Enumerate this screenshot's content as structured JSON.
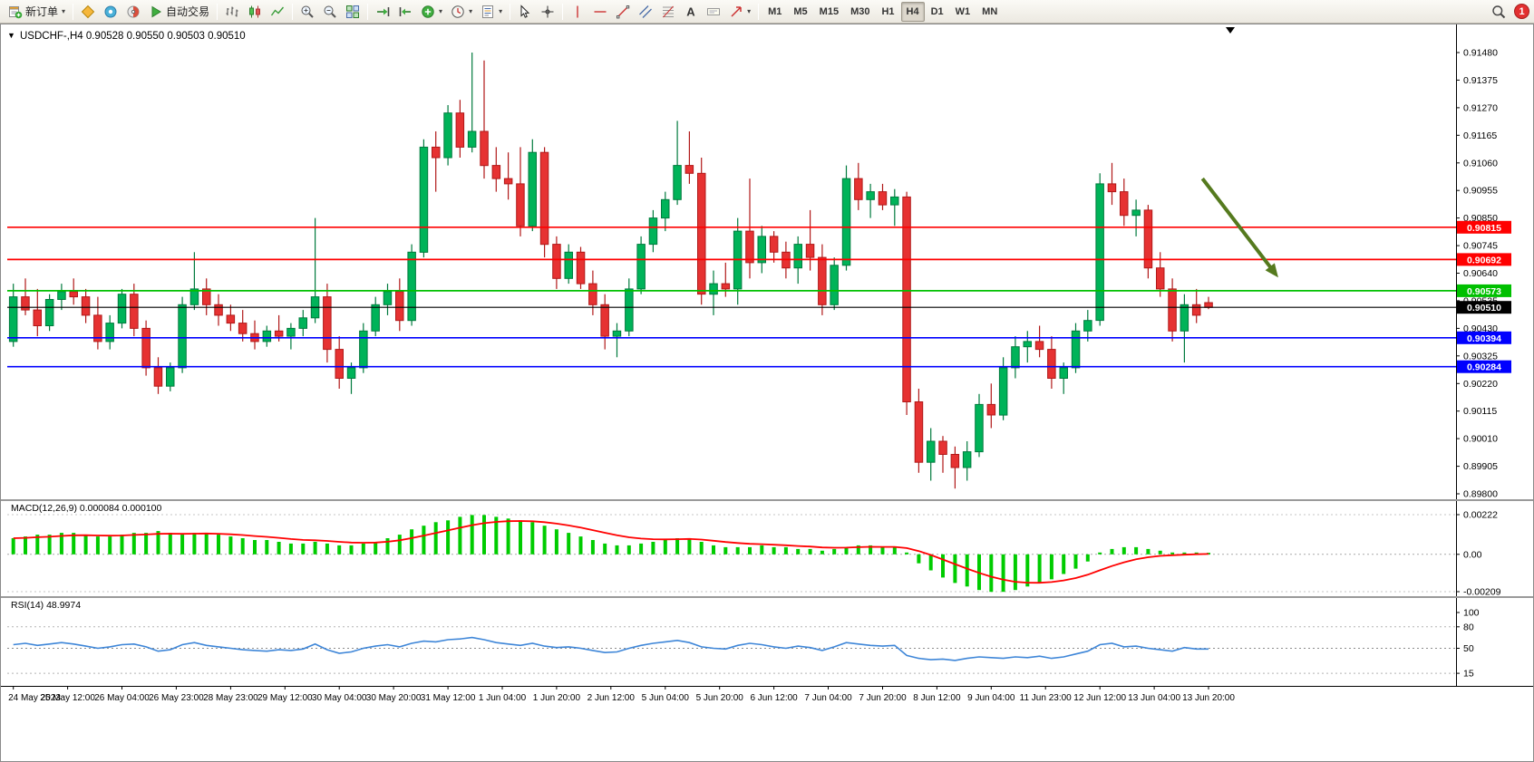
{
  "toolbar": {
    "new_order_label": "新订单",
    "autotrading_label": "自动交易",
    "timeframes": [
      "M1",
      "M5",
      "M15",
      "M30",
      "H1",
      "H4",
      "D1",
      "W1",
      "MN"
    ],
    "active_timeframe": "H4",
    "alert_count": "1",
    "items": [
      {
        "name": "new-order-button",
        "icon": "new-order",
        "label_key": "new_order_label",
        "caret": true
      },
      {
        "sep": true
      },
      {
        "name": "market-watch-button",
        "icon": "market-watch"
      },
      {
        "name": "data-window-button",
        "icon": "data-window"
      },
      {
        "name": "navigator-button",
        "icon": "navigator"
      },
      {
        "name": "autotrading-button",
        "icon": "autotrading",
        "label_key": "autotrading_label"
      },
      {
        "sep": true
      },
      {
        "name": "bar-chart-button",
        "icon": "bar-chart"
      },
      {
        "name": "candlestick-button",
        "icon": "candlestick"
      },
      {
        "name": "line-chart-button",
        "icon": "line-chart"
      },
      {
        "sep": true
      },
      {
        "name": "zoom-in-button",
        "icon": "zoom-in"
      },
      {
        "name": "zoom-out-button",
        "icon": "zoom-out"
      },
      {
        "name": "tile-windows-button",
        "icon": "tile-windows"
      },
      {
        "sep": true
      },
      {
        "name": "auto-scroll-button",
        "icon": "auto-scroll"
      },
      {
        "name": "chart-shift-button",
        "icon": "chart-shift"
      },
      {
        "name": "indicators-button",
        "icon": "indicators",
        "caret": true
      },
      {
        "name": "periods-button",
        "icon": "periods",
        "caret": true
      },
      {
        "name": "templates-button",
        "icon": "templates",
        "caret": true
      },
      {
        "sep": true
      },
      {
        "name": "cursor-button",
        "icon": "cursor"
      },
      {
        "name": "crosshair-button",
        "icon": "crosshair"
      },
      {
        "sep": true
      },
      {
        "name": "vertical-line-button",
        "icon": "vertical-line"
      },
      {
        "name": "horizontal-line-button",
        "icon": "horizontal-line"
      },
      {
        "name": "trendline-button",
        "icon": "trendline"
      },
      {
        "name": "channel-button",
        "icon": "channel"
      },
      {
        "name": "fibonacci-button",
        "icon": "fibonacci"
      },
      {
        "name": "text-button",
        "icon": "text"
      },
      {
        "name": "label-button",
        "icon": "label"
      },
      {
        "name": "arrows-button",
        "icon": "arrows",
        "caret": true
      },
      {
        "sep": true
      },
      {
        "timeframes": true
      },
      {
        "spacer": true
      },
      {
        "name": "search-button",
        "icon": "search"
      },
      {
        "badge": true,
        "name": "alert-badge"
      }
    ]
  },
  "chart_data": {
    "type": "candlestick",
    "title": "USDCHF-,H4",
    "title_marker": "▼",
    "ohlc_text": "0.90528 0.90550 0.90503 0.90510",
    "price_axis": {
      "min": 0.898,
      "max": 0.9148,
      "tick_labels": [
        "0.91480",
        "0.91375",
        "0.91270",
        "0.91165",
        "0.91060",
        "0.90955",
        "0.90850",
        "0.90745",
        "0.90640",
        "0.90535",
        "0.90430",
        "0.90325",
        "0.90220",
        "0.90115",
        "0.90010",
        "0.89905",
        "0.89800"
      ]
    },
    "candles": [
      [
        0.9038,
        0.906,
        0.9036,
        0.9055
      ],
      [
        0.9055,
        0.9062,
        0.9048,
        0.905
      ],
      [
        0.905,
        0.9058,
        0.904,
        0.9044
      ],
      [
        0.9044,
        0.9056,
        0.9042,
        0.9054
      ],
      [
        0.9054,
        0.906,
        0.905,
        0.9057
      ],
      [
        0.9057,
        0.9062,
        0.9052,
        0.9055
      ],
      [
        0.9055,
        0.9058,
        0.9045,
        0.9048
      ],
      [
        0.9048,
        0.9055,
        0.9035,
        0.9038
      ],
      [
        0.9038,
        0.9048,
        0.9035,
        0.9045
      ],
      [
        0.9045,
        0.9058,
        0.9043,
        0.9056
      ],
      [
        0.9056,
        0.906,
        0.904,
        0.9043
      ],
      [
        0.9043,
        0.9046,
        0.9025,
        0.9028
      ],
      [
        0.9028,
        0.9032,
        0.9018,
        0.9021
      ],
      [
        0.9021,
        0.903,
        0.9019,
        0.9028
      ],
      [
        0.9028,
        0.9055,
        0.9026,
        0.9052
      ],
      [
        0.9052,
        0.9072,
        0.905,
        0.9058
      ],
      [
        0.9058,
        0.9062,
        0.9048,
        0.9052
      ],
      [
        0.9052,
        0.9056,
        0.9044,
        0.9048
      ],
      [
        0.9048,
        0.9052,
        0.9042,
        0.9045
      ],
      [
        0.9045,
        0.905,
        0.9038,
        0.9041
      ],
      [
        0.9041,
        0.9046,
        0.9035,
        0.9038
      ],
      [
        0.9038,
        0.9044,
        0.9036,
        0.9042
      ],
      [
        0.9042,
        0.9048,
        0.9038,
        0.904
      ],
      [
        0.904,
        0.9045,
        0.9035,
        0.9043
      ],
      [
        0.9043,
        0.905,
        0.904,
        0.9047
      ],
      [
        0.9047,
        0.9085,
        0.9045,
        0.9055
      ],
      [
        0.9055,
        0.906,
        0.903,
        0.9035
      ],
      [
        0.9035,
        0.904,
        0.902,
        0.9024
      ],
      [
        0.9024,
        0.903,
        0.9018,
        0.9028
      ],
      [
        0.9028,
        0.9045,
        0.9026,
        0.9042
      ],
      [
        0.9042,
        0.9055,
        0.904,
        0.9052
      ],
      [
        0.9052,
        0.906,
        0.9048,
        0.9057
      ],
      [
        0.9057,
        0.9062,
        0.9042,
        0.9046
      ],
      [
        0.9046,
        0.9075,
        0.9044,
        0.9072
      ],
      [
        0.9072,
        0.9115,
        0.907,
        0.9112
      ],
      [
        0.9112,
        0.9118,
        0.9095,
        0.9108
      ],
      [
        0.9108,
        0.9128,
        0.9105,
        0.9125
      ],
      [
        0.9125,
        0.913,
        0.9108,
        0.9112
      ],
      [
        0.9112,
        0.9148,
        0.911,
        0.9118
      ],
      [
        0.9118,
        0.9145,
        0.91,
        0.9105
      ],
      [
        0.9105,
        0.9112,
        0.9095,
        0.91
      ],
      [
        0.91,
        0.911,
        0.9092,
        0.9098
      ],
      [
        0.9098,
        0.9112,
        0.9078,
        0.9082
      ],
      [
        0.9082,
        0.9115,
        0.908,
        0.911
      ],
      [
        0.911,
        0.9112,
        0.907,
        0.9075
      ],
      [
        0.9075,
        0.9078,
        0.9058,
        0.9062
      ],
      [
        0.9062,
        0.9075,
        0.906,
        0.9072
      ],
      [
        0.9072,
        0.9074,
        0.9058,
        0.906
      ],
      [
        0.906,
        0.9065,
        0.9048,
        0.9052
      ],
      [
        0.9052,
        0.9056,
        0.9035,
        0.904
      ],
      [
        0.904,
        0.9045,
        0.9032,
        0.9042
      ],
      [
        0.9042,
        0.9062,
        0.904,
        0.9058
      ],
      [
        0.9058,
        0.9078,
        0.9056,
        0.9075
      ],
      [
        0.9075,
        0.9088,
        0.9072,
        0.9085
      ],
      [
        0.9085,
        0.9095,
        0.908,
        0.9092
      ],
      [
        0.9092,
        0.9122,
        0.909,
        0.9105
      ],
      [
        0.9105,
        0.9118,
        0.9098,
        0.9102
      ],
      [
        0.9102,
        0.9108,
        0.9052,
        0.9056
      ],
      [
        0.9056,
        0.9065,
        0.9048,
        0.906
      ],
      [
        0.906,
        0.9068,
        0.9055,
        0.9058
      ],
      [
        0.9058,
        0.9085,
        0.9052,
        0.908
      ],
      [
        0.908,
        0.91,
        0.9062,
        0.9068
      ],
      [
        0.9068,
        0.9082,
        0.9064,
        0.9078
      ],
      [
        0.9078,
        0.908,
        0.9068,
        0.9072
      ],
      [
        0.9072,
        0.9076,
        0.9062,
        0.9066
      ],
      [
        0.9066,
        0.9078,
        0.906,
        0.9075
      ],
      [
        0.9075,
        0.9088,
        0.9065,
        0.907
      ],
      [
        0.907,
        0.9075,
        0.9048,
        0.9052
      ],
      [
        0.9052,
        0.907,
        0.905,
        0.9067
      ],
      [
        0.9067,
        0.9105,
        0.9065,
        0.91
      ],
      [
        0.91,
        0.9106,
        0.9088,
        0.9092
      ],
      [
        0.9092,
        0.9098,
        0.9085,
        0.9095
      ],
      [
        0.9095,
        0.9098,
        0.9088,
        0.909
      ],
      [
        0.909,
        0.9096,
        0.9082,
        0.9093
      ],
      [
        0.9093,
        0.9095,
        0.901,
        0.9015
      ],
      [
        0.9015,
        0.902,
        0.8988,
        0.8992
      ],
      [
        0.8992,
        0.9005,
        0.8985,
        0.9
      ],
      [
        0.9,
        0.9002,
        0.8988,
        0.8995
      ],
      [
        0.8995,
        0.8998,
        0.8982,
        0.899
      ],
      [
        0.899,
        0.9,
        0.8985,
        0.8996
      ],
      [
        0.8996,
        0.9018,
        0.8994,
        0.9014
      ],
      [
        0.9014,
        0.9022,
        0.9005,
        0.901
      ],
      [
        0.901,
        0.9032,
        0.9008,
        0.9028
      ],
      [
        0.9028,
        0.904,
        0.9024,
        0.9036
      ],
      [
        0.9036,
        0.9042,
        0.903,
        0.9038
      ],
      [
        0.9038,
        0.9044,
        0.9032,
        0.9035
      ],
      [
        0.9035,
        0.904,
        0.902,
        0.9024
      ],
      [
        0.9024,
        0.903,
        0.9018,
        0.9028
      ],
      [
        0.9028,
        0.9045,
        0.9026,
        0.9042
      ],
      [
        0.9042,
        0.905,
        0.9038,
        0.9046
      ],
      [
        0.9046,
        0.9102,
        0.9044,
        0.9098
      ],
      [
        0.9098,
        0.9106,
        0.909,
        0.9095
      ],
      [
        0.9095,
        0.91,
        0.9082,
        0.9086
      ],
      [
        0.9086,
        0.9092,
        0.9078,
        0.9088
      ],
      [
        0.9088,
        0.909,
        0.9062,
        0.9066
      ],
      [
        0.9066,
        0.9072,
        0.9055,
        0.9058
      ],
      [
        0.9058,
        0.9062,
        0.9038,
        0.9042
      ],
      [
        0.9042,
        0.9056,
        0.903,
        0.9052
      ],
      [
        0.9052,
        0.9058,
        0.9045,
        0.9048
      ],
      [
        0.90528,
        0.9055,
        0.90503,
        0.9051
      ]
    ],
    "hlines": [
      {
        "price": 0.90815,
        "label": "0.90815",
        "color": "#ff0000"
      },
      {
        "price": 0.90692,
        "label": "0.90692",
        "color": "#ff0000"
      },
      {
        "price": 0.90573,
        "label": "0.90573",
        "color": "#00c000"
      },
      {
        "price": 0.90394,
        "label": "0.90394",
        "color": "#0000ff"
      },
      {
        "price": 0.90284,
        "label": "0.90284",
        "color": "#0000ff"
      }
    ],
    "current_price": {
      "price": 0.9051,
      "label": "0.90510",
      "color": "#000000"
    },
    "trend_arrow": {
      "from_bar": 98.5,
      "from_price": 0.91,
      "to_bar": 104.5,
      "to_price": 0.9064,
      "color": "#557a1e"
    },
    "shift_marker_bar": 100.8,
    "time_axis": {
      "labels": [
        "24 May 2023",
        "25 May 12:00",
        "26 May 04:00",
        "26 May 23:00",
        "28 May 23:00",
        "29 May 12:00",
        "30 May 04:00",
        "30 May 20:00",
        "31 May 12:00",
        "1 Jun 04:00",
        "1 Jun 20:00",
        "2 Jun 12:00",
        "5 Jun 04:00",
        "5 Jun 20:00",
        "6 Jun 12:00",
        "7 Jun 04:00",
        "7 Jun 20:00",
        "8 Jun 12:00",
        "9 Jun 04:00",
        "11 Jun 23:00",
        "12 Jun 12:00",
        "13 Jun 04:00",
        "13 Jun 20:00"
      ]
    },
    "macd": {
      "name": "MACD(12,26,9)",
      "value": "0.000084",
      "signal_value": "0.000100",
      "axis_labels": [
        "0.00222",
        "0.00",
        "-0.00209"
      ],
      "range": [
        -0.00209,
        0.00222
      ],
      "values": [
        0.0009,
        0.001,
        0.0011,
        0.0011,
        0.0012,
        0.0012,
        0.0011,
        0.001,
        0.001,
        0.0011,
        0.0012,
        0.0012,
        0.0013,
        0.0012,
        0.0011,
        0.0012,
        0.0012,
        0.0011,
        0.001,
        0.0009,
        0.0008,
        0.0008,
        0.0007,
        0.0006,
        0.0006,
        0.0007,
        0.0006,
        0.0005,
        0.0005,
        0.0006,
        0.0007,
        0.0009,
        0.0011,
        0.0014,
        0.0016,
        0.0018,
        0.0019,
        0.0021,
        0.0022,
        0.0022,
        0.0021,
        0.002,
        0.0019,
        0.0018,
        0.0016,
        0.0014,
        0.0012,
        0.001,
        0.0008,
        0.0006,
        0.0005,
        0.0005,
        0.0006,
        0.0007,
        0.0008,
        0.0009,
        0.0009,
        0.0007,
        0.0005,
        0.0004,
        0.0004,
        0.0004,
        0.0005,
        0.0004,
        0.0004,
        0.0003,
        0.0003,
        0.0002,
        0.0003,
        0.0004,
        0.0005,
        0.0005,
        0.0004,
        0.0004,
        0.0001,
        -0.0005,
        -0.0009,
        -0.0013,
        -0.0016,
        -0.0018,
        -0.002,
        -0.0021,
        -0.0021,
        -0.002,
        -0.0018,
        -0.0016,
        -0.0014,
        -0.0011,
        -0.0008,
        -0.0004,
        0.0001,
        0.0003,
        0.0004,
        0.0004,
        0.0003,
        0.0002,
        0.0001,
        0.0001,
        0.0001,
        8.4e-05
      ]
    },
    "rsi": {
      "name": "RSI(14)",
      "value": "48.9974",
      "range": [
        0,
        100
      ],
      "levels": [
        80,
        50,
        15
      ],
      "axis_labels": [
        "100",
        "80",
        "50",
        "15"
      ],
      "axis_label_values": [
        100,
        80,
        50,
        15
      ],
      "values": [
        55,
        57,
        54,
        56,
        58,
        56,
        53,
        50,
        52,
        55,
        56,
        52,
        46,
        48,
        55,
        58,
        54,
        52,
        50,
        48,
        47,
        46,
        48,
        47,
        49,
        56,
        48,
        43,
        45,
        50,
        53,
        55,
        52,
        57,
        60,
        59,
        62,
        63,
        65,
        62,
        58,
        56,
        54,
        57,
        53,
        51,
        52,
        50,
        47,
        44,
        45,
        50,
        54,
        57,
        59,
        61,
        58,
        52,
        50,
        49,
        54,
        57,
        55,
        52,
        50,
        53,
        51,
        47,
        52,
        58,
        56,
        54,
        53,
        54,
        40,
        36,
        34,
        35,
        33,
        36,
        38,
        37,
        36,
        38,
        37,
        39,
        36,
        38,
        42,
        46,
        55,
        57,
        52,
        53,
        50,
        48,
        46,
        51,
        49,
        48.9974
      ]
    },
    "colors": {
      "bull_fill": "#00b359",
      "bull_stroke": "#007a3d",
      "bear_fill": "#e63232",
      "bear_stroke": "#b01818",
      "macd_hist": "#00cc00",
      "macd_signal": "#ff0000",
      "rsi_line": "#3e86d8"
    }
  }
}
